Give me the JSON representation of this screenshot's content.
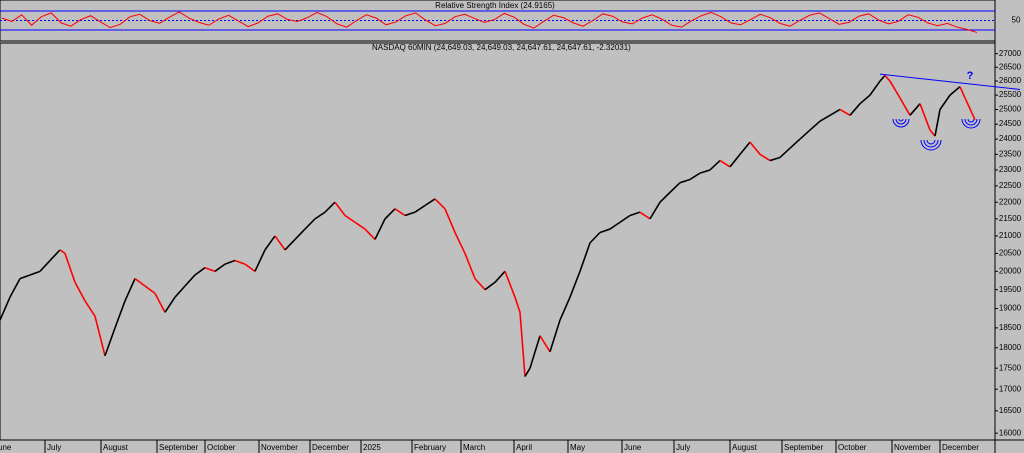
{
  "chart_data": [
    {
      "type": "line",
      "title": "Relative Strength Index (24.9165)",
      "ylim": [
        9,
        91
      ],
      "yticks": [
        50
      ],
      "levels": [
        30,
        70
      ],
      "level_color": "#0000ff",
      "series": [
        {
          "name": "RSI",
          "color": "#ff0000",
          "values": [
            55,
            48,
            62,
            40,
            58,
            66,
            45,
            38,
            52,
            60,
            47,
            35,
            42,
            58,
            63,
            50,
            44,
            57,
            68,
            55,
            46,
            40,
            53,
            61,
            49,
            37,
            45,
            59,
            64,
            52,
            48,
            56,
            67,
            58,
            43,
            36,
            50,
            62,
            55,
            41,
            47,
            60,
            66,
            51,
            39,
            44,
            58,
            63,
            54,
            46,
            52,
            65,
            57,
            42,
            34,
            48,
            61,
            56,
            45,
            38,
            50,
            64,
            59,
            47,
            43,
            55,
            62,
            53,
            40,
            36,
            49,
            60,
            67,
            58,
            45,
            41,
            52,
            63,
            56,
            44,
            38,
            50,
            61,
            66,
            54,
            42,
            46,
            59,
            64,
            51,
            43,
            48,
            62,
            57,
            45,
            39,
            44,
            36,
            31,
            24.9165
          ]
        }
      ]
    },
    {
      "type": "line",
      "title": "NASDAQ 60MIN (24,649.03, 24,649.03, 24,647.61, 24,647.61, -2.32031)",
      "log_scale": true,
      "ylim": [
        15850,
        27400
      ],
      "xlim": [
        0,
        995
      ],
      "yticks": [
        16000,
        16500,
        17000,
        17500,
        18000,
        18500,
        19000,
        19500,
        20000,
        20500,
        21000,
        21500,
        22000,
        22500,
        23000,
        23500,
        24000,
        24500,
        25000,
        25500,
        26000,
        26500,
        27000
      ],
      "xticks": [
        {
          "value": -8,
          "label": "June"
        },
        {
          "value": 45,
          "label": "July"
        },
        {
          "value": 101,
          "label": "August"
        },
        {
          "value": 157,
          "label": "September"
        },
        {
          "value": 205,
          "label": "October"
        },
        {
          "value": 259,
          "label": "November"
        },
        {
          "value": 310,
          "label": "December"
        },
        {
          "value": 361,
          "label": "2025"
        },
        {
          "value": 412,
          "label": "February"
        },
        {
          "value": 461,
          "label": "March"
        },
        {
          "value": 514,
          "label": "April"
        },
        {
          "value": 568,
          "label": "May"
        },
        {
          "value": 622,
          "label": "June"
        },
        {
          "value": 674,
          "label": "July"
        },
        {
          "value": 730,
          "label": "August"
        },
        {
          "value": 782,
          "label": "September"
        },
        {
          "value": 836,
          "label": "October"
        },
        {
          "value": 892,
          "label": "November"
        },
        {
          "value": 940,
          "label": "December"
        }
      ],
      "x": [
        0,
        10,
        20,
        30,
        40,
        50,
        60,
        65,
        75,
        85,
        95,
        105,
        115,
        125,
        135,
        145,
        155,
        165,
        175,
        185,
        195,
        205,
        215,
        225,
        235,
        245,
        255,
        265,
        275,
        285,
        295,
        305,
        315,
        325,
        335,
        345,
        355,
        365,
        375,
        385,
        395,
        405,
        415,
        425,
        435,
        445,
        455,
        465,
        475,
        485,
        495,
        505,
        515,
        520,
        525,
        530,
        540,
        550,
        560,
        570,
        580,
        590,
        600,
        610,
        620,
        630,
        640,
        650,
        660,
        670,
        680,
        690,
        700,
        710,
        720,
        730,
        740,
        750,
        760,
        770,
        780,
        790,
        800,
        810,
        820,
        830,
        840,
        850,
        860,
        870,
        880,
        885,
        890,
        900,
        910,
        920,
        930,
        935,
        940,
        950,
        960,
        965,
        975
      ],
      "series": [
        {
          "name": "NASDAQ",
          "color": "#000000",
          "down_color": "#ff0000",
          "values": [
            18700,
            19300,
            19800,
            19900,
            20000,
            20300,
            20600,
            20500,
            19700,
            19200,
            18800,
            17800,
            18500,
            19200,
            19800,
            19600,
            19400,
            18900,
            19300,
            19600,
            19900,
            20100,
            20000,
            20200,
            20300,
            20200,
            20000,
            20600,
            21000,
            20600,
            20900,
            21200,
            21500,
            21700,
            22000,
            21600,
            21400,
            21200,
            20900,
            21500,
            21800,
            21600,
            21700,
            21900,
            22100,
            21800,
            21100,
            20500,
            19800,
            19500,
            19700,
            20000,
            19300,
            18900,
            17300,
            17500,
            18300,
            17900,
            18700,
            19300,
            20000,
            20800,
            21100,
            21200,
            21400,
            21600,
            21700,
            21500,
            22000,
            22300,
            22600,
            22700,
            22900,
            23000,
            23300,
            23100,
            23500,
            23900,
            23500,
            23300,
            23400,
            23700,
            24000,
            24300,
            24600,
            24800,
            25000,
            24800,
            25200,
            25500,
            26000,
            26200,
            26000,
            25400,
            24800,
            25200,
            24300,
            24100,
            25000,
            25500,
            25800,
            25400,
            24650
          ]
        }
      ],
      "trendline": {
        "color": "#0000ff",
        "x": [
          880,
          1020
        ],
        "values": [
          26250,
          25700
        ]
      },
      "annotation": {
        "text": "?",
        "color": "#0000ff"
      }
    }
  ]
}
